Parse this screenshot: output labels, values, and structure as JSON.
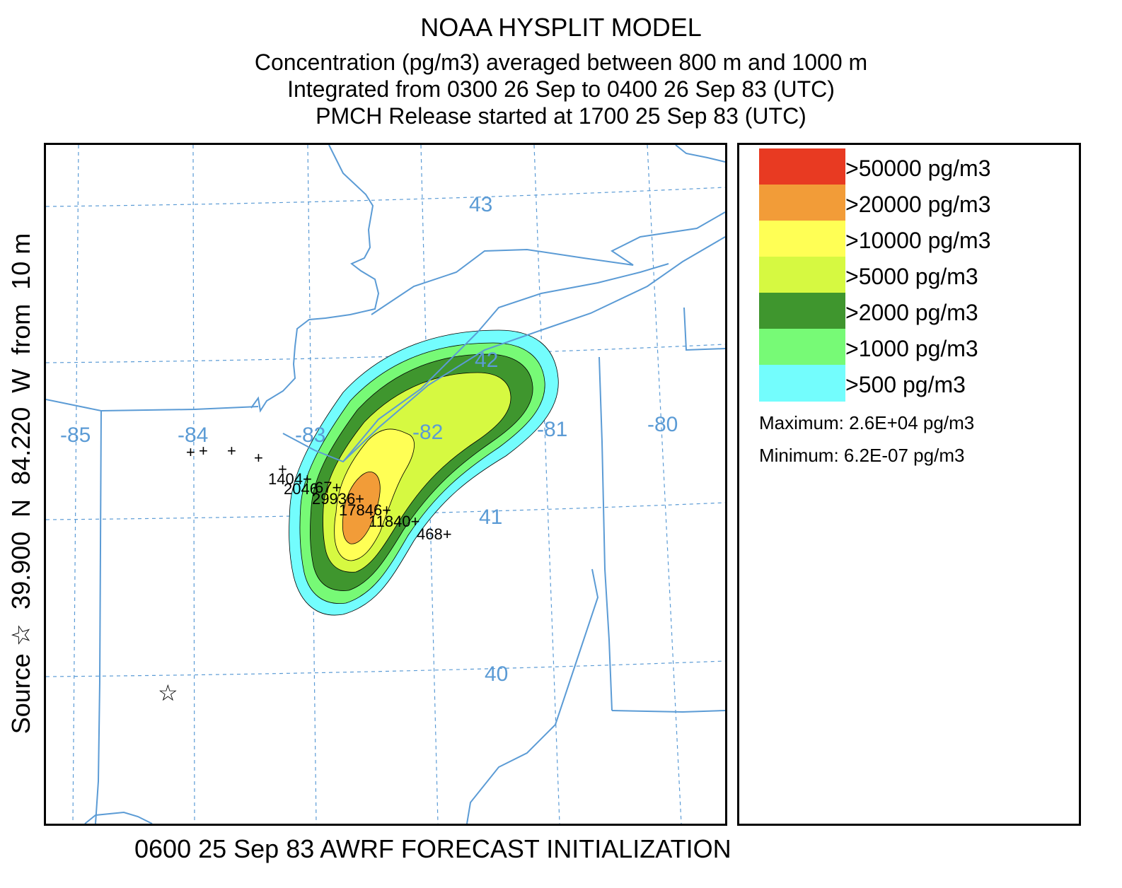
{
  "title": {
    "line1": "NOAA HYSPLIT MODEL",
    "line2": "Concentration  (pg/m3) averaged between   800 m and  1000 m",
    "line3": "Integrated from 0300 26 Sep to 0400 26 Sep 83 (UTC)",
    "line4": "PMCH Release started at 1700 25 Sep 83 (UTC)"
  },
  "source_label": "Source ☆  39.900  N  84.220  W  from  10 m",
  "footer": "0600 25 Sep 83 AWRF FORECAST INITIALIZATION",
  "map": {
    "grid_colour": "#5b9bd5",
    "longitude_labels": [
      "-85",
      "-84",
      "-83",
      "-82",
      "-81",
      "-80"
    ],
    "latitude_labels": [
      "43",
      "42",
      "41",
      "40"
    ],
    "source_marker": "☆",
    "sample_values": [
      "1404+",
      "2046",
      "67+",
      "29936+",
      "17846+",
      "11840+",
      "468+"
    ],
    "plus_marker": "+"
  },
  "legend": {
    "levels": [
      {
        "label": ">50000 pg/m3",
        "color": "#e83a22"
      },
      {
        "label": ">20000 pg/m3",
        "color": "#f29c38"
      },
      {
        "label": ">10000 pg/m3",
        "color": "#ffff55"
      },
      {
        "label": ">5000 pg/m3",
        "color": "#d6f941"
      },
      {
        "label": ">2000 pg/m3",
        "color": "#3f962e"
      },
      {
        "label": ">1000 pg/m3",
        "color": "#77fa76"
      },
      {
        "label": ">500 pg/m3",
        "color": "#73fdfd"
      }
    ],
    "maximum": "Maximum: 2.6E+04 pg/m3",
    "minimum": "Minimum: 6.2E-07 pg/m3"
  }
}
